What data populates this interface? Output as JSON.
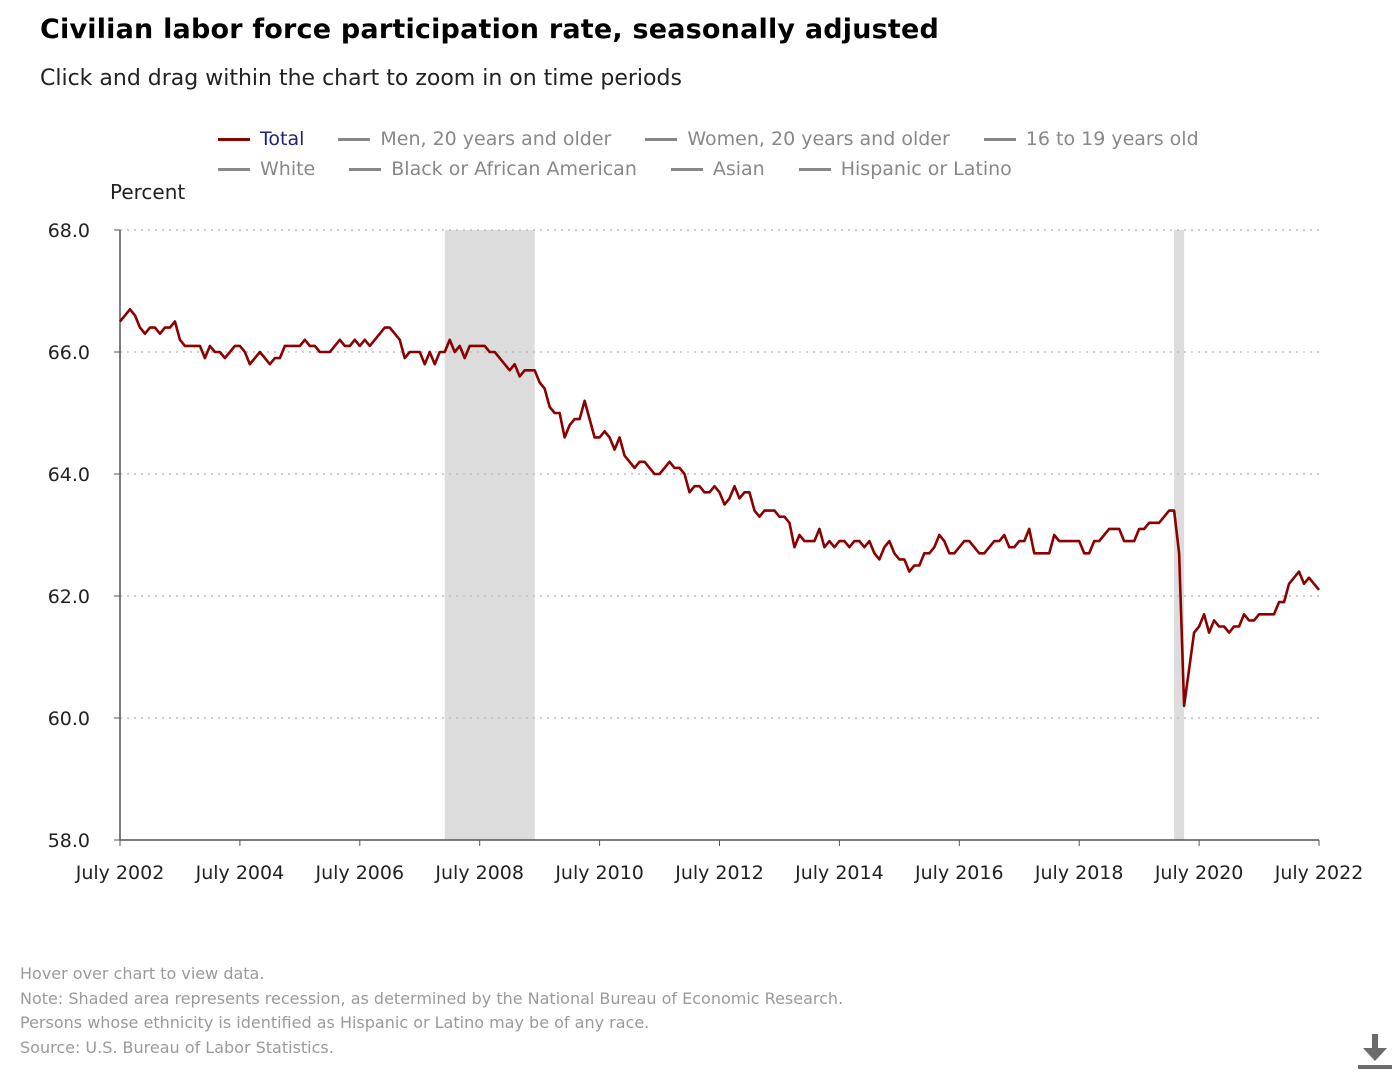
{
  "title": "Civilian labor force participation rate, seasonally adjusted",
  "subtitle": "Click and drag within the chart to zoom in on time periods",
  "legend": [
    {
      "label": "Total",
      "active": true
    },
    {
      "label": "Men, 20 years and older",
      "active": false
    },
    {
      "label": "Women, 20 years and older",
      "active": false
    },
    {
      "label": "16 to 19 years old",
      "active": false
    },
    {
      "label": "White",
      "active": false
    },
    {
      "label": "Black or African American",
      "active": false
    },
    {
      "label": "Asian",
      "active": false
    },
    {
      "label": "Hispanic or Latino",
      "active": false
    }
  ],
  "notes": [
    "Hover over chart to view data.",
    "Note: Shaded area represents recession, as determined by the National Bureau of Economic Research.",
    "Persons whose ethnicity is identified as Hispanic or Latino may be of any race.",
    "Source: U.S. Bureau of Labor Statistics."
  ],
  "icons": {
    "download": "download-icon"
  },
  "colors": {
    "series": "#8b0000",
    "recession": "#dcdcdc",
    "grid": "#bdbdbd",
    "axis": "#555555"
  },
  "chart_data": {
    "type": "line",
    "xlabel": "",
    "ylabel": "Percent",
    "xlim": [
      "2002-07",
      "2022-07"
    ],
    "ylim": [
      58.0,
      68.0
    ],
    "yticks": [
      "58.0",
      "60.0",
      "62.0",
      "64.0",
      "66.0",
      "68.0"
    ],
    "xticks": [
      "July 2002",
      "July 2004",
      "July 2006",
      "July 2008",
      "July 2010",
      "July 2012",
      "July 2014",
      "July 2016",
      "July 2018",
      "July 2020",
      "July 2022"
    ],
    "grid": "horizontal dotted",
    "recessions": [
      {
        "start": "2007-12",
        "end": "2009-06"
      },
      {
        "start": "2020-02",
        "end": "2020-04"
      }
    ],
    "series": [
      {
        "name": "Total",
        "color": "#8b0000",
        "start": "2002-07",
        "frequency": "monthly",
        "values": [
          66.5,
          66.6,
          66.7,
          66.6,
          66.4,
          66.3,
          66.4,
          66.4,
          66.3,
          66.4,
          66.4,
          66.5,
          66.2,
          66.1,
          66.1,
          66.1,
          66.1,
          65.9,
          66.1,
          66.0,
          66.0,
          65.9,
          66.0,
          66.1,
          66.1,
          66.0,
          65.8,
          65.9,
          66.0,
          65.9,
          65.8,
          65.9,
          65.9,
          66.1,
          66.1,
          66.1,
          66.1,
          66.2,
          66.1,
          66.1,
          66.0,
          66.0,
          66.0,
          66.1,
          66.2,
          66.1,
          66.1,
          66.2,
          66.1,
          66.2,
          66.1,
          66.2,
          66.3,
          66.4,
          66.4,
          66.3,
          66.2,
          65.9,
          66.0,
          66.0,
          66.0,
          65.8,
          66.0,
          65.8,
          66.0,
          66.0,
          66.2,
          66.0,
          66.1,
          65.9,
          66.1,
          66.1,
          66.1,
          66.1,
          66.0,
          66.0,
          65.9,
          65.8,
          65.7,
          65.8,
          65.6,
          65.7,
          65.7,
          65.7,
          65.5,
          65.4,
          65.1,
          65.0,
          65.0,
          64.6,
          64.8,
          64.9,
          64.9,
          65.2,
          64.9,
          64.6,
          64.6,
          64.7,
          64.6,
          64.4,
          64.6,
          64.3,
          64.2,
          64.1,
          64.2,
          64.2,
          64.1,
          64.0,
          64.0,
          64.1,
          64.2,
          64.1,
          64.1,
          64.0,
          63.7,
          63.8,
          63.8,
          63.7,
          63.7,
          63.8,
          63.7,
          63.5,
          63.6,
          63.8,
          63.6,
          63.7,
          63.7,
          63.4,
          63.3,
          63.4,
          63.4,
          63.4,
          63.3,
          63.3,
          63.2,
          62.8,
          63.0,
          62.9,
          62.9,
          62.9,
          63.1,
          62.8,
          62.9,
          62.8,
          62.9,
          62.9,
          62.8,
          62.9,
          62.9,
          62.8,
          62.9,
          62.7,
          62.6,
          62.8,
          62.9,
          62.7,
          62.6,
          62.6,
          62.4,
          62.5,
          62.5,
          62.7,
          62.7,
          62.8,
          63.0,
          62.9,
          62.7,
          62.7,
          62.8,
          62.9,
          62.9,
          62.8,
          62.7,
          62.7,
          62.8,
          62.9,
          62.9,
          63.0,
          62.8,
          62.8,
          62.9,
          62.9,
          63.1,
          62.7,
          62.7,
          62.7,
          62.7,
          63.0,
          62.9,
          62.9,
          62.9,
          62.9,
          62.9,
          62.7,
          62.7,
          62.9,
          62.9,
          63.0,
          63.1,
          63.1,
          63.1,
          62.9,
          62.9,
          62.9,
          63.1,
          63.1,
          63.2,
          63.2,
          63.2,
          63.3,
          63.4,
          63.4,
          62.7,
          60.2,
          60.8,
          61.4,
          61.5,
          61.7,
          61.4,
          61.6,
          61.5,
          61.5,
          61.4,
          61.5,
          61.5,
          61.7,
          61.6,
          61.6,
          61.7,
          61.7,
          61.7,
          61.7,
          61.9,
          61.9,
          62.2,
          62.3,
          62.4,
          62.2,
          62.3,
          62.2,
          62.1
        ]
      }
    ]
  }
}
